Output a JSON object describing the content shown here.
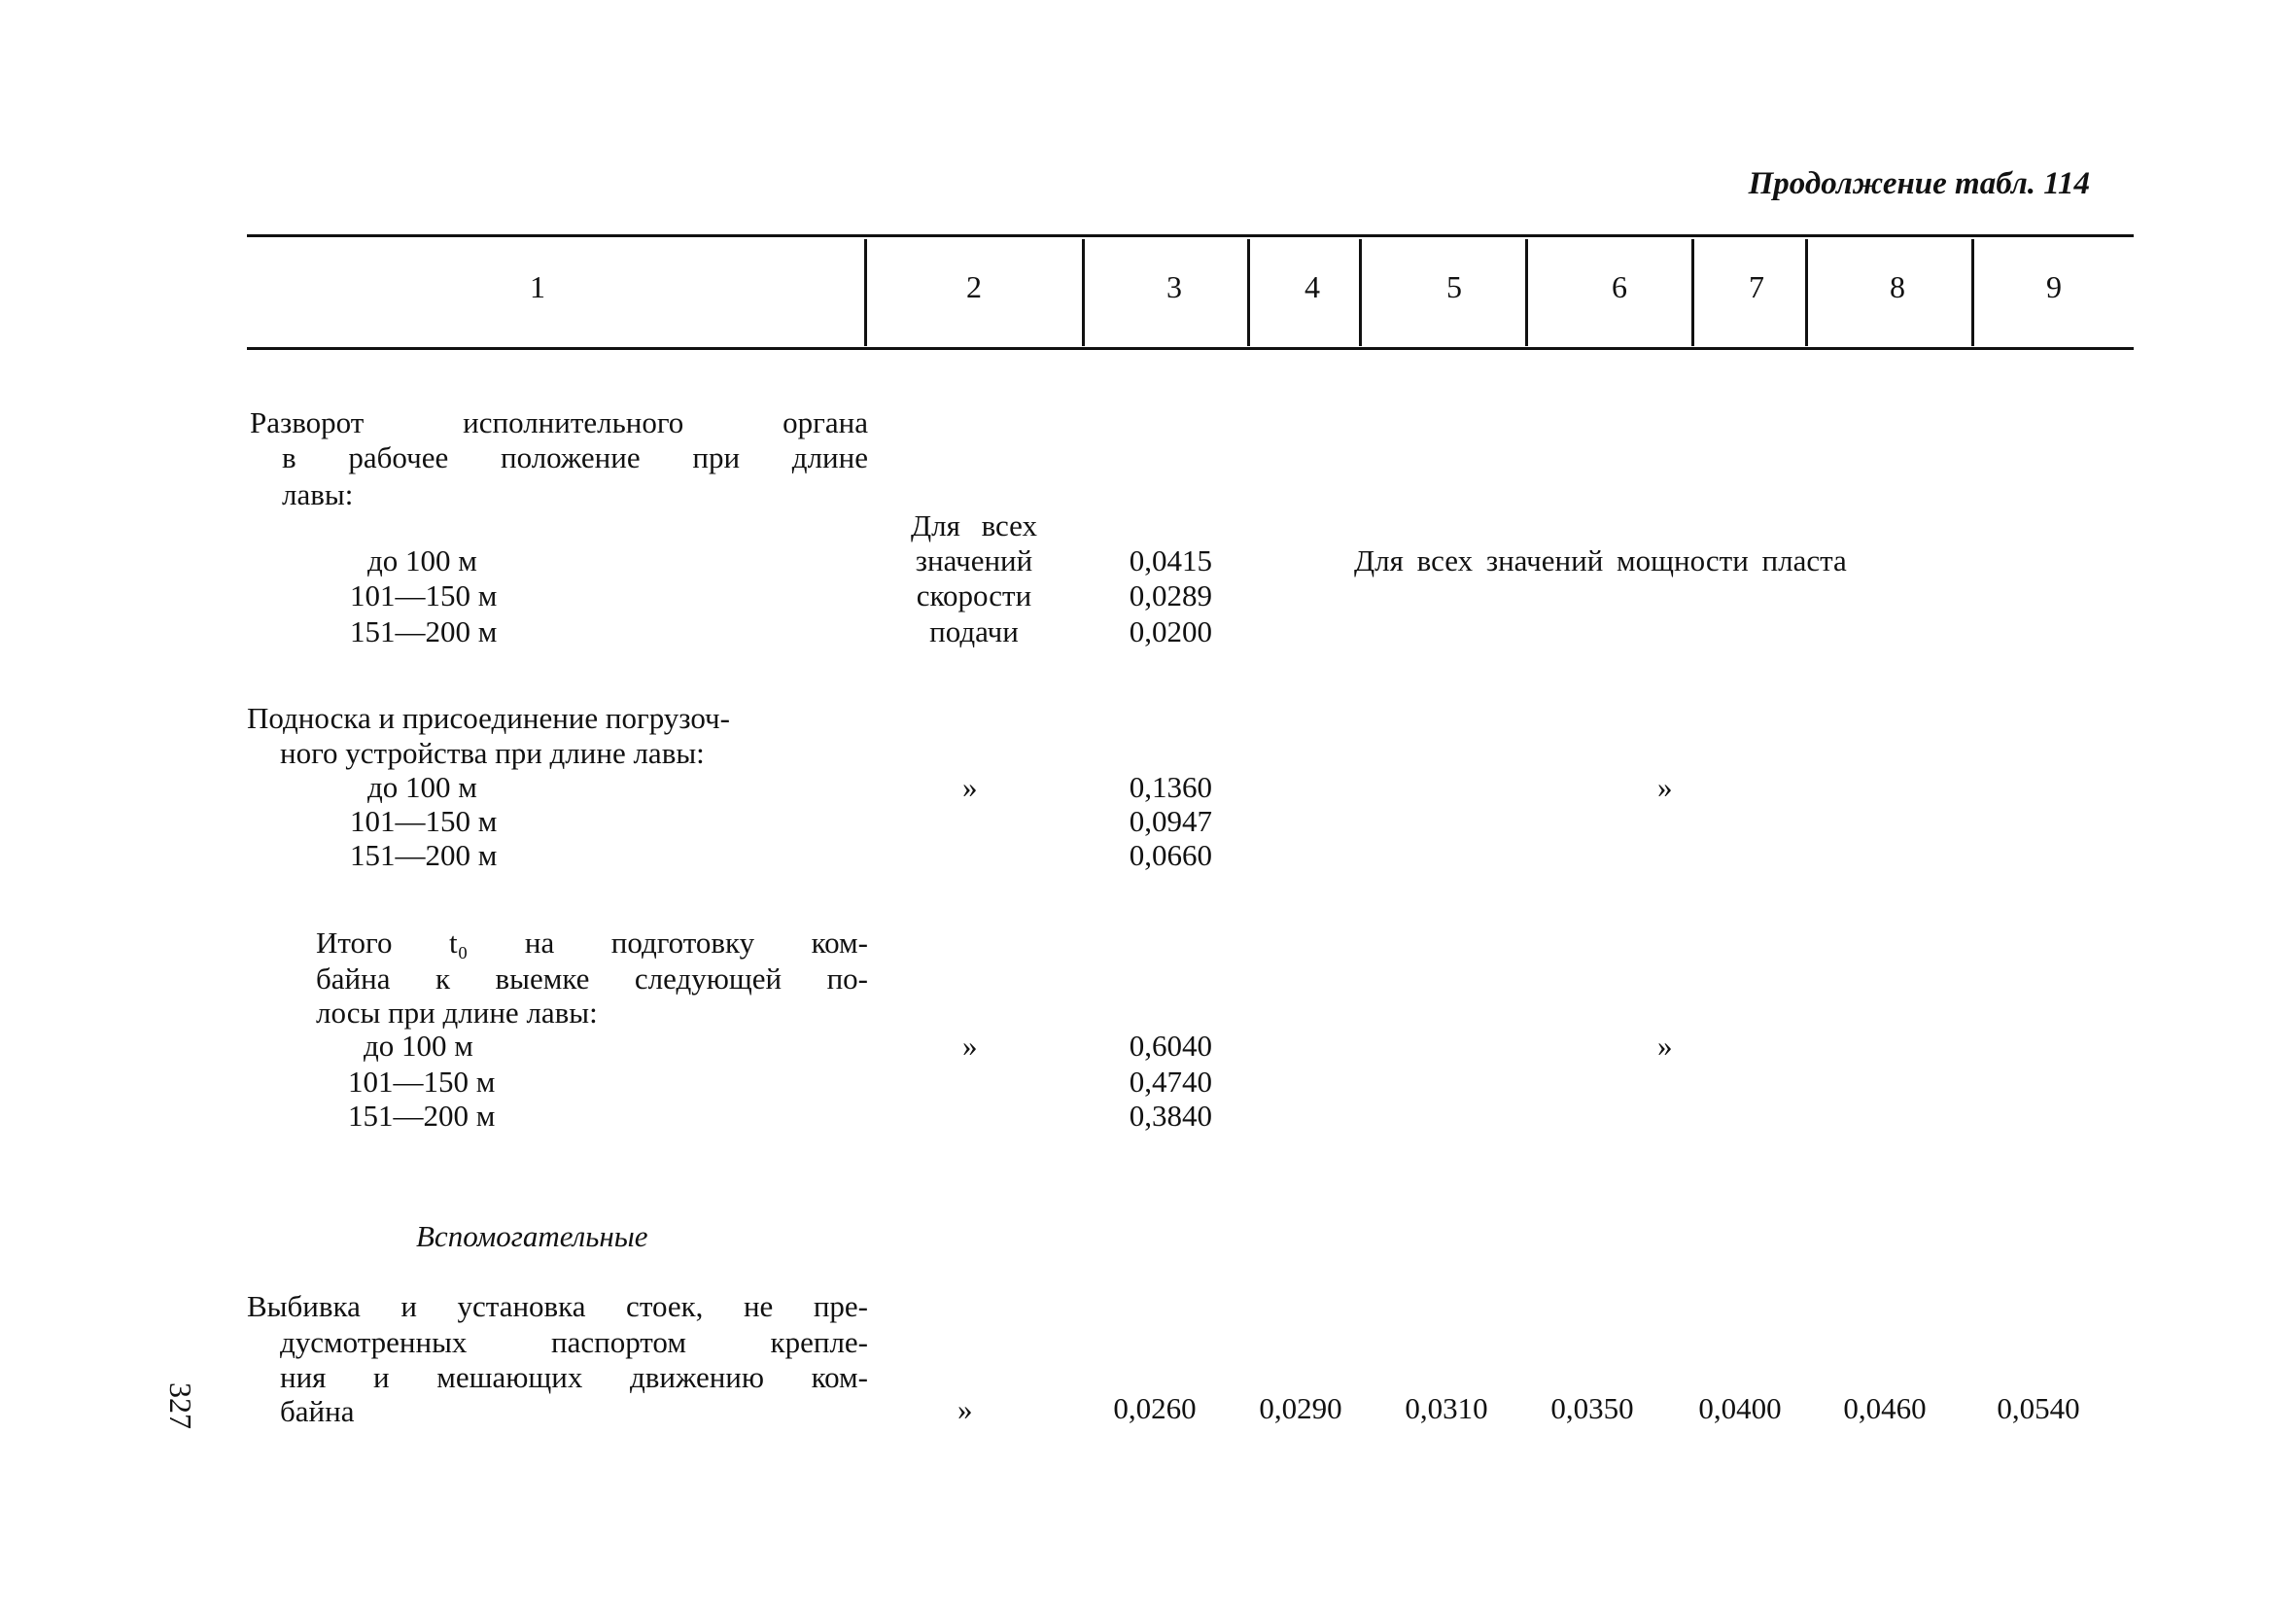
{
  "page_header": "Продолжение табл. 114",
  "page_number": "327",
  "columns": [
    "1",
    "2",
    "3",
    "4",
    "5",
    "6",
    "7",
    "8",
    "9"
  ],
  "rows": [
    {
      "title_lines": [
        "Разворот исполнительного органа",
        "в рабочее положение при длине",
        "лавы:"
      ],
      "col2_lines": [
        "Для всех",
        "значений",
        "скорости",
        "подачи"
      ],
      "sub": [
        {
          "label": "до 100 м",
          "value": "0,0415"
        },
        {
          "label": "101—150 м",
          "value": "0,0289"
        },
        {
          "label": "151—200 м",
          "value": "0,0200"
        }
      ],
      "cols4_9": "Для всех значений мощности пласта"
    },
    {
      "title_lines": [
        "Подноска и присоединение погрузоч-",
        "ного устройства при длине лавы:"
      ],
      "col2": "»",
      "sub": [
        {
          "label": "до 100 м",
          "value": "0,1360"
        },
        {
          "label": "101—150 м",
          "value": "0,0947"
        },
        {
          "label": "151—200 м",
          "value": "0,0660"
        }
      ],
      "cols4_9": "»"
    },
    {
      "title_lines": [
        "Итого t₀ на подготовку ком-",
        "байна к выемке следующей по-",
        "лосы при длине лавы:"
      ],
      "col2": "»",
      "sub": [
        {
          "label": "до 100 м",
          "value": "0,6040"
        },
        {
          "label": "101—150 м",
          "value": "0,4740"
        },
        {
          "label": "151—200 м",
          "value": "0,3840"
        }
      ],
      "cols4_9": "»"
    }
  ],
  "section_heading": "Вспомогательные",
  "aux_row": {
    "title_lines": [
      "Выбивка и установка стоек, не пре-",
      "дусмотренных паспортом крепле-",
      "ния и мешающих движению ком-",
      "байна"
    ],
    "col2": "»",
    "values": [
      "0,0260",
      "0,0290",
      "0,0310",
      "0,0350",
      "0,0400",
      "0,0460",
      "0,0540"
    ]
  }
}
